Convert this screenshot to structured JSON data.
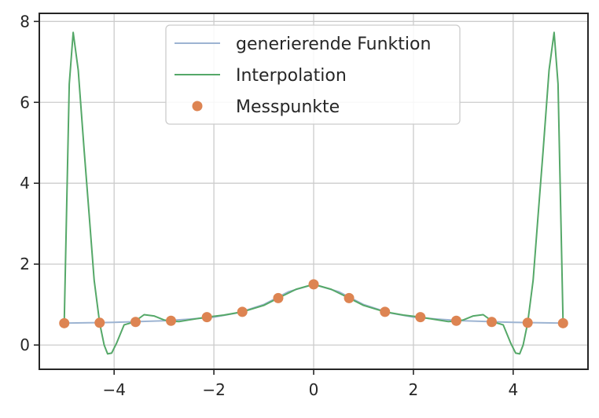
{
  "chart_data": {
    "type": "line",
    "title": "",
    "xlabel": "",
    "ylabel": "",
    "xlim": [
      -5.5,
      5.5
    ],
    "ylim": [
      -0.6,
      8.2
    ],
    "xticks": [
      -4,
      -2,
      0,
      2,
      4
    ],
    "yticks": [
      0,
      2,
      4,
      6,
      8
    ],
    "x_tick_labels": [
      "−4",
      "−2",
      "0",
      "2",
      "4"
    ],
    "y_tick_labels": [
      "0",
      "2",
      "4",
      "6",
      "8"
    ],
    "grid": true,
    "legend_position": "upper center",
    "legend_entries": [
      "generierende Funktion",
      "Interpolation",
      "Messpunkte"
    ],
    "colors": {
      "generating": "#9db4d2",
      "interpolation": "#55a868",
      "points": "#dd8452",
      "grid": "#cccccc",
      "axes": "#262626"
    },
    "series": [
      {
        "name": "generierende Funktion",
        "kind": "line",
        "x": [
          -5,
          -4.5,
          -4,
          -3.5,
          -3,
          -2.5,
          -2,
          -1.5,
          -1,
          -0.5,
          0,
          0.5,
          1,
          1.5,
          2,
          2.5,
          3,
          3.5,
          4,
          4.5,
          5
        ],
        "y": [
          0.54,
          0.55,
          0.56,
          0.58,
          0.6,
          0.64,
          0.69,
          0.8,
          1.0,
          1.32,
          1.5,
          1.32,
          1.0,
          0.8,
          0.69,
          0.64,
          0.6,
          0.58,
          0.56,
          0.55,
          0.54
        ]
      },
      {
        "name": "Interpolation",
        "kind": "line",
        "x": [
          -5.0,
          -4.9,
          -4.82,
          -4.72,
          -4.6,
          -4.5,
          -4.4,
          -4.29,
          -4.2,
          -4.13,
          -4.05,
          -3.95,
          -3.8,
          -3.6,
          -3.4,
          -3.2,
          -3.0,
          -2.86,
          -2.7,
          -2.5,
          -2.14,
          -1.8,
          -1.43,
          -1.0,
          -0.71,
          -0.35,
          0,
          0.35,
          0.71,
          1.0,
          1.43,
          1.8,
          2.14,
          2.5,
          2.7,
          2.86,
          3.0,
          3.2,
          3.4,
          3.6,
          3.8,
          3.95,
          4.05,
          4.13,
          4.2,
          4.29,
          4.4,
          4.5,
          4.6,
          4.72,
          4.82,
          4.9,
          5.0
        ],
        "y": [
          0.54,
          6.45,
          7.73,
          6.8,
          4.8,
          3.2,
          1.6,
          0.54,
          0.0,
          -0.22,
          -0.2,
          0.05,
          0.5,
          0.57,
          0.75,
          0.72,
          0.62,
          0.59,
          0.58,
          0.62,
          0.69,
          0.74,
          0.82,
          0.98,
          1.16,
          1.38,
          1.5,
          1.38,
          1.16,
          0.98,
          0.82,
          0.74,
          0.69,
          0.62,
          0.58,
          0.59,
          0.62,
          0.72,
          0.75,
          0.57,
          0.5,
          0.05,
          -0.2,
          -0.22,
          0.0,
          0.54,
          1.6,
          3.2,
          4.8,
          6.8,
          7.73,
          6.45,
          0.54
        ]
      },
      {
        "name": "Messpunkte",
        "kind": "scatter",
        "x": [
          -5.0,
          -4.29,
          -3.57,
          -2.86,
          -2.14,
          -1.43,
          -0.71,
          0.0,
          0.71,
          1.43,
          2.14,
          2.86,
          3.57,
          4.29,
          5.0
        ],
        "y": [
          0.54,
          0.55,
          0.57,
          0.6,
          0.69,
          0.82,
          1.16,
          1.5,
          1.16,
          0.82,
          0.69,
          0.6,
          0.57,
          0.55,
          0.54
        ]
      }
    ]
  }
}
